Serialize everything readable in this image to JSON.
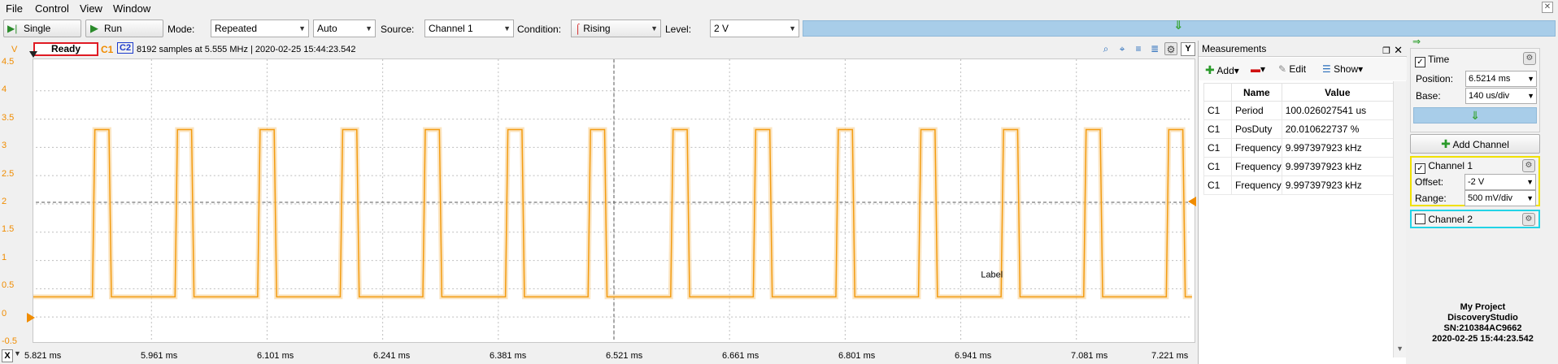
{
  "menu": {
    "file": "File",
    "control": "Control",
    "view": "View",
    "window": "Window"
  },
  "toolbar": {
    "single_label": "Single",
    "run_label": "Run",
    "mode_label": "Mode:",
    "mode_value": "Repeated",
    "auto_value": "Auto",
    "source_label": "Source:",
    "source_value": "Channel 1",
    "condition_label": "Condition:",
    "condition_value": "Rising",
    "level_label": "Level:",
    "level_value": "2 V"
  },
  "scope": {
    "status": "Ready",
    "c1": "C1",
    "c2": "C2",
    "acq_info": "8192 samples at 5.555 MHz | 2020-02-25 15:44:23.542",
    "y_button": "Y",
    "x_button": "X",
    "label_annotation": "Label",
    "y_unit": "V",
    "y_ticks": [
      "4.5",
      "4",
      "3.5",
      "3",
      "2.5",
      "2",
      "1.5",
      "1",
      "0.5",
      "0",
      "-0.5"
    ],
    "x_ticks": [
      "5.821 ms",
      "5.961 ms",
      "6.101 ms",
      "6.241 ms",
      "6.381 ms",
      "6.521 ms",
      "6.661 ms",
      "6.801 ms",
      "6.941 ms",
      "7.081 ms",
      "7.221 ms"
    ]
  },
  "measurements": {
    "title": "Measurements",
    "add_label": "Add",
    "edit_label": "Edit",
    "show_label": "Show",
    "columns": [
      "Name",
      "Value"
    ],
    "rows": [
      {
        "ch": "C1",
        "name": "Period",
        "value": "100.026027541 us"
      },
      {
        "ch": "C1",
        "name": "PosDuty",
        "value": "20.010622737 %"
      },
      {
        "ch": "C1",
        "name": "Frequency",
        "value": "9.997397923 kHz"
      },
      {
        "ch": "C1",
        "name": "Frequency",
        "value": "9.997397923 kHz"
      },
      {
        "ch": "C1",
        "name": "Frequency",
        "value": "9.997397923 kHz"
      }
    ]
  },
  "panel": {
    "time_label": "Time",
    "position_label": "Position:",
    "position_value": "6.5214 ms",
    "base_label": "Base:",
    "base_value": "140 us/div",
    "add_channel_label": "Add Channel",
    "channel1_label": "Channel 1",
    "offset_label": "Offset:",
    "offset_value": "-2 V",
    "range_label": "Range:",
    "range_value": "500 mV/div",
    "channel2_label": "Channel 2",
    "channel1_color": "#f0e000",
    "channel2_color": "#22d3e6"
  },
  "project": {
    "name": "My Project",
    "device": "DiscoveryStudio",
    "serial": "SN:210384AC9662",
    "timestamp": "2020-02-25 15:44:23.542"
  },
  "colors": {
    "trace": "#f39c12",
    "trace_light": "#f9d39a",
    "status_border": "#e01b24",
    "accent_bar": "#a8cde9"
  }
}
